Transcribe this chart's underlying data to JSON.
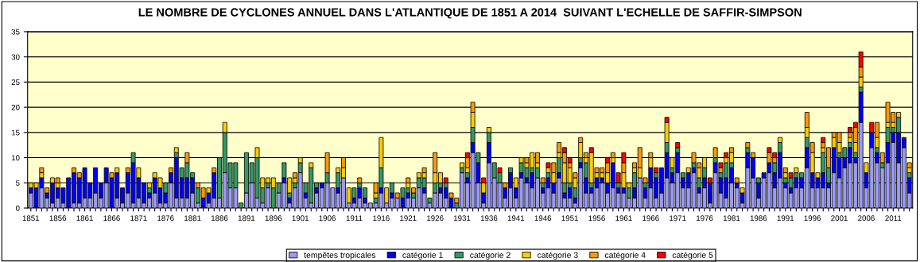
{
  "chart_data": {
    "type": "bar",
    "stacked": true,
    "title": "LE NOMBRE DE CYCLONES ANNUEL DANS L'ATLANTIQUE DE 1851 A 2014  SUIVANT L'ECHELLE DE SAFFIR-SIMPSON",
    "categories": [
      "1851",
      null,
      null,
      null,
      null,
      "1856",
      null,
      null,
      null,
      null,
      "1861",
      null,
      null,
      null,
      null,
      "1866",
      null,
      null,
      null,
      null,
      "1871",
      null,
      null,
      null,
      null,
      "1876",
      null,
      null,
      null,
      null,
      "1881",
      null,
      null,
      null,
      null,
      "1886",
      null,
      null,
      null,
      null,
      "1891",
      null,
      null,
      null,
      null,
      "1896",
      null,
      null,
      null,
      null,
      "1901",
      null,
      null,
      null,
      null,
      "1906",
      null,
      null,
      null,
      null,
      "1911",
      null,
      null,
      null,
      null,
      "1916",
      null,
      null,
      null,
      null,
      "1921",
      null,
      null,
      null,
      null,
      "1926",
      null,
      null,
      null,
      null,
      "1931",
      null,
      null,
      null,
      null,
      "1936",
      null,
      null,
      null,
      null,
      "1941",
      null,
      null,
      null,
      null,
      "1946",
      null,
      null,
      null,
      null,
      "1951",
      null,
      null,
      null,
      null,
      "1956",
      null,
      null,
      null,
      null,
      "1961",
      null,
      null,
      null,
      null,
      "1966",
      null,
      null,
      null,
      null,
      "1971",
      null,
      null,
      null,
      null,
      "1976",
      null,
      null,
      null,
      null,
      "1981",
      null,
      null,
      null,
      null,
      "1986",
      null,
      null,
      null,
      null,
      "1991",
      null,
      null,
      null,
      null,
      "1996",
      null,
      null,
      null,
      null,
      "2001",
      null,
      null,
      null,
      null,
      "2006",
      null,
      null,
      null,
      null,
      "2011",
      null,
      null,
      null
    ],
    "series": [
      {
        "name": "tempêtes tropicales",
        "color": "#9999ff",
        "values": [
          3,
          0,
          4,
          2,
          1,
          2,
          1,
          0,
          1,
          1,
          2,
          2,
          3,
          2,
          5,
          0,
          2,
          1,
          3,
          1,
          2,
          1,
          2,
          3,
          1,
          1,
          5,
          2,
          2,
          2,
          3,
          1,
          0,
          1,
          2,
          2,
          7,
          4,
          4,
          0,
          3,
          5,
          2,
          1,
          4,
          0,
          3,
          5,
          1,
          4,
          7,
          2,
          1,
          3,
          4,
          5,
          4,
          3,
          6,
          1,
          1,
          2,
          1,
          1,
          1,
          3,
          1,
          2,
          2,
          0,
          2,
          2,
          4,
          3,
          1,
          3,
          3,
          2,
          0,
          0,
          7,
          5,
          11,
          5,
          1,
          9,
          6,
          5,
          2,
          4,
          2,
          6,
          5,
          4,
          6,
          3,
          4,
          3,
          6,
          2,
          2,
          1,
          8,
          3,
          3,
          4,
          5,
          3,
          4,
          3,
          3,
          2,
          2,
          6,
          2,
          4,
          2,
          3,
          6,
          5,
          7,
          4,
          4,
          7,
          3,
          4,
          1,
          7,
          3,
          2,
          5,
          4,
          1,
          8,
          6,
          2,
          6,
          7,
          4,
          6,
          4,
          3,
          4,
          4,
          8,
          4,
          4,
          4,
          4,
          7,
          6,
          8,
          9,
          9,
          17,
          4,
          12,
          9,
          8,
          9,
          13,
          9,
          12,
          3
        ]
      },
      {
        "name": "catégorie 1",
        "color": "#0000ff",
        "values": [
          1,
          4,
          2,
          1,
          4,
          2,
          3,
          6,
          6,
          5,
          6,
          3,
          5,
          3,
          3,
          6,
          5,
          3,
          4,
          8,
          4,
          4,
          1,
          3,
          3,
          2,
          2,
          8,
          4,
          4,
          3,
          0,
          2,
          2,
          5,
          0,
          0,
          0,
          0,
          0,
          0,
          0,
          0,
          0,
          0,
          0,
          0,
          1,
          1,
          0,
          0,
          1,
          0,
          1,
          1,
          0,
          0,
          1,
          0,
          0,
          1,
          2,
          1,
          0,
          0,
          1,
          0,
          1,
          0,
          2,
          1,
          0,
          0,
          1,
          0,
          0,
          1,
          2,
          2,
          0,
          0,
          1,
          2,
          4,
          2,
          4,
          0,
          0,
          2,
          3,
          2,
          1,
          1,
          3,
          0,
          1,
          2,
          2,
          1,
          1,
          2,
          1,
          1,
          3,
          1,
          2,
          1,
          2,
          5,
          1,
          1,
          0,
          2,
          0,
          2,
          4,
          4,
          5,
          5,
          2,
          4,
          2,
          3,
          1,
          1,
          2,
          4,
          2,
          3,
          4,
          3,
          1,
          2,
          3,
          4,
          3,
          1,
          2,
          3,
          5,
          1,
          1,
          2,
          2,
          4,
          3,
          2,
          3,
          1,
          5,
          4,
          2,
          3,
          1,
          6,
          3,
          3,
          2,
          0,
          4,
          2,
          6,
          2,
          3
        ]
      },
      {
        "name": "catégorie 2",
        "color": "#339966",
        "values": [
          0,
          0,
          0,
          0,
          0,
          0,
          0,
          0,
          0,
          0,
          0,
          0,
          0,
          0,
          0,
          0,
          0,
          0,
          0,
          2,
          0,
          0,
          1,
          0,
          0,
          2,
          0,
          1,
          2,
          3,
          1,
          3,
          0,
          0,
          0,
          8,
          8,
          5,
          5,
          1,
          8,
          4,
          8,
          3,
          1,
          4,
          2,
          3,
          1,
          1,
          2,
          2,
          7,
          1,
          0,
          2,
          0,
          3,
          0,
          0,
          2,
          1,
          2,
          0,
          1,
          4,
          0,
          2,
          0,
          2,
          1,
          1,
          2,
          2,
          1,
          2,
          1,
          1,
          0,
          1,
          1,
          1,
          3,
          2,
          0,
          2,
          3,
          2,
          0,
          1,
          0,
          2,
          2,
          1,
          2,
          1,
          1,
          0,
          3,
          2,
          1,
          2,
          1,
          3,
          1,
          0,
          0,
          0,
          0,
          1,
          0,
          2,
          3,
          0,
          1,
          0,
          1,
          0,
          2,
          1,
          1,
          1,
          0,
          1,
          2,
          2,
          0,
          1,
          1,
          3,
          1,
          0,
          0,
          1,
          0,
          1,
          0,
          0,
          2,
          2,
          1,
          2,
          1,
          1,
          2,
          0,
          0,
          4,
          3,
          0,
          1,
          2,
          1,
          1,
          1,
          0,
          0,
          1,
          1,
          3,
          1,
          3,
          0,
          1
        ]
      },
      {
        "name": "catégorie 3",
        "color": "#ffcc00",
        "values": [
          1,
          1,
          1,
          0,
          1,
          1,
          0,
          0,
          0,
          0,
          0,
          0,
          0,
          0,
          0,
          0,
          1,
          0,
          0,
          0,
          2,
          0,
          1,
          1,
          2,
          0,
          0,
          1,
          0,
          0,
          0,
          0,
          0,
          1,
          0,
          0,
          2,
          0,
          0,
          0,
          0,
          0,
          2,
          2,
          1,
          2,
          0,
          0,
          3,
          1,
          1,
          0,
          1,
          0,
          0,
          0,
          0,
          1,
          2,
          3,
          0,
          0,
          0,
          0,
          1,
          6,
          3,
          0,
          0,
          0,
          1,
          0,
          1,
          1,
          0,
          2,
          2,
          0,
          0,
          0,
          1,
          1,
          3,
          0,
          2,
          1,
          0,
          0,
          0,
          0,
          2,
          1,
          1,
          3,
          1,
          0,
          1,
          2,
          1,
          4,
          3,
          2,
          3,
          1,
          6,
          1,
          1,
          2,
          1,
          0,
          3,
          1,
          1,
          2,
          0,
          2,
          0,
          0,
          4,
          2,
          0,
          0,
          1,
          0,
          2,
          2,
          0,
          0,
          0,
          1,
          2,
          0,
          1,
          0,
          0,
          0,
          0,
          0,
          0,
          1,
          1,
          0,
          1,
          0,
          2,
          4,
          1,
          1,
          0,
          2,
          2,
          0,
          1,
          2,
          2,
          2,
          0,
          2,
          0,
          1,
          1,
          1,
          0,
          1
        ]
      },
      {
        "name": "catégorie 4",
        "color": "#ff9900",
        "values": [
          0,
          0,
          1,
          1,
          0,
          1,
          0,
          0,
          1,
          1,
          0,
          0,
          0,
          0,
          0,
          1,
          0,
          0,
          1,
          0,
          0,
          0,
          0,
          0,
          0,
          0,
          1,
          0,
          0,
          2,
          0,
          1,
          2,
          0,
          1,
          0,
          0,
          0,
          0,
          0,
          0,
          0,
          0,
          0,
          0,
          0,
          0,
          0,
          0,
          1,
          0,
          0,
          0,
          0,
          0,
          4,
          0,
          0,
          2,
          0,
          0,
          1,
          0,
          0,
          2,
          0,
          0,
          0,
          1,
          0,
          1,
          1,
          0,
          1,
          0,
          4,
          0,
          0,
          1,
          1,
          0,
          2,
          2,
          0,
          0,
          0,
          0,
          0,
          1,
          0,
          0,
          0,
          1,
          0,
          2,
          1,
          0,
          2,
          2,
          2,
          1,
          1,
          1,
          1,
          0,
          1,
          1,
          2,
          1,
          0,
          2,
          0,
          1,
          4,
          1,
          1,
          0,
          0,
          0,
          0,
          0,
          0,
          0,
          2,
          1,
          0,
          0,
          2,
          1,
          0,
          1,
          1,
          0,
          1,
          1,
          0,
          0,
          2,
          1,
          0,
          1,
          0,
          0,
          0,
          3,
          2,
          0,
          1,
          4,
          1,
          2,
          0,
          1,
          3,
          2,
          0,
          0,
          3,
          2,
          4,
          2,
          0,
          0,
          1
        ]
      },
      {
        "name": "catégorie 5",
        "color": "#ff0000",
        "values": [
          0,
          0,
          0,
          0,
          0,
          0,
          0,
          0,
          0,
          0,
          0,
          0,
          0,
          0,
          0,
          0,
          0,
          0,
          0,
          0,
          0,
          0,
          0,
          0,
          0,
          0,
          0,
          0,
          0,
          0,
          0,
          0,
          0,
          0,
          0,
          0,
          0,
          0,
          0,
          0,
          0,
          0,
          0,
          0,
          0,
          0,
          0,
          0,
          0,
          0,
          0,
          0,
          0,
          0,
          0,
          0,
          0,
          0,
          0,
          0,
          0,
          0,
          0,
          0,
          0,
          0,
          0,
          0,
          0,
          0,
          0,
          0,
          0,
          0,
          0,
          0,
          0,
          1,
          0,
          0,
          0,
          1,
          0,
          0,
          1,
          0,
          0,
          1,
          0,
          0,
          0,
          0,
          0,
          0,
          0,
          0,
          1,
          0,
          0,
          1,
          1,
          0,
          0,
          0,
          1,
          0,
          0,
          1,
          0,
          2,
          2,
          0,
          0,
          0,
          0,
          0,
          1,
          0,
          1,
          0,
          1,
          0,
          0,
          0,
          0,
          0,
          1,
          0,
          1,
          1,
          0,
          0,
          0,
          0,
          0,
          0,
          0,
          1,
          1,
          0,
          0,
          1,
          0,
          0,
          0,
          0,
          0,
          1,
          0,
          0,
          0,
          0,
          1,
          1,
          3,
          0,
          2,
          0,
          0,
          0,
          0,
          0,
          0,
          0
        ]
      }
    ],
    "ylim": [
      0,
      35
    ],
    "yticks": [
      0,
      5,
      10,
      15,
      20,
      25,
      30,
      35
    ],
    "grid": "y",
    "legend": "bottom"
  }
}
